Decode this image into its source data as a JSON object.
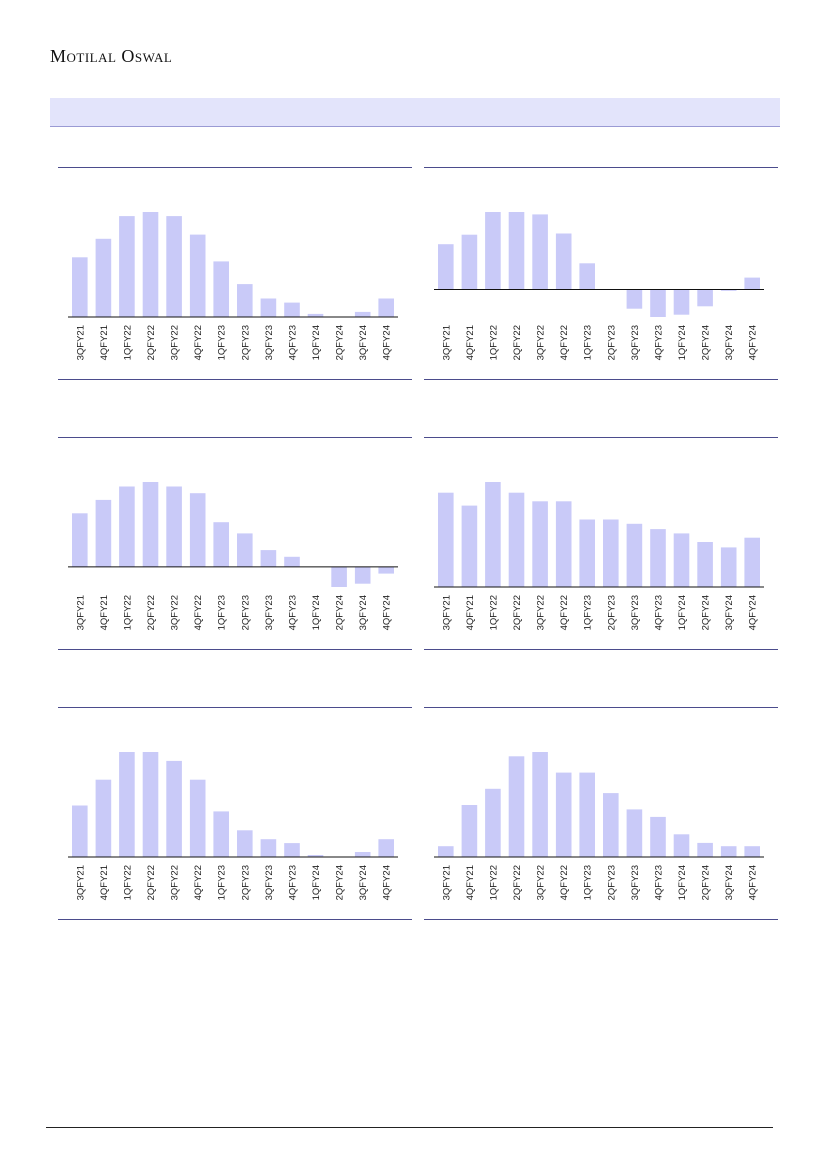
{
  "header": {
    "brand": "Motilal Oswal"
  },
  "colors": {
    "bar": "#c9caf8",
    "rule": "#4b4c8c",
    "axis": "#111111",
    "band": "#e3e4fb"
  },
  "chart_data": [
    {
      "type": "bar",
      "categories": [
        "3QFY21",
        "4QFY21",
        "1QFY22",
        "2QFY22",
        "3QFY22",
        "4QFY22",
        "1QFY23",
        "2QFY23",
        "3QFY23",
        "4QFY23",
        "1QFY24",
        "2QFY24",
        "3QFY24",
        "4QFY24"
      ],
      "values": [
        58,
        76,
        98,
        102,
        98,
        80,
        54,
        32,
        18,
        14,
        3,
        0,
        5,
        18
      ],
      "ylim": [
        0,
        102
      ]
    },
    {
      "type": "bar",
      "categories": [
        "3QFY21",
        "4QFY21",
        "1QFY22",
        "2QFY22",
        "3QFY22",
        "4QFY22",
        "1QFY23",
        "2QFY23",
        "3QFY23",
        "4QFY23",
        "1QFY24",
        "2QFY24",
        "3QFY24",
        "4QFY24"
      ],
      "values": [
        38,
        46,
        65,
        65,
        63,
        47,
        22,
        0,
        -16,
        -23,
        -21,
        -14,
        -1,
        10
      ],
      "ylim": [
        -23,
        65
      ]
    },
    {
      "type": "bar",
      "categories": [
        "3QFY21",
        "4QFY21",
        "1QFY22",
        "2QFY22",
        "3QFY22",
        "4QFY22",
        "1QFY23",
        "2QFY23",
        "3QFY23",
        "4QFY23",
        "1QFY24",
        "2QFY24",
        "3QFY24",
        "4QFY24"
      ],
      "values": [
        48,
        60,
        72,
        76,
        72,
        66,
        40,
        30,
        15,
        9,
        0,
        -18,
        -15,
        -6
      ],
      "ylim": [
        -18,
        76
      ]
    },
    {
      "type": "bar",
      "categories": [
        "3QFY21",
        "4QFY21",
        "1QFY22",
        "2QFY22",
        "3QFY22",
        "4QFY22",
        "1QFY23",
        "2QFY23",
        "3QFY23",
        "4QFY23",
        "1QFY24",
        "2QFY24",
        "3QFY24",
        "4QFY24"
      ],
      "values": [
        88,
        76,
        98,
        88,
        80,
        80,
        63,
        63,
        59,
        54,
        50,
        42,
        37,
        46
      ],
      "ylim": [
        0,
        98
      ]
    },
    {
      "type": "bar",
      "categories": [
        "3QFY21",
        "4QFY21",
        "1QFY22",
        "2QFY22",
        "3QFY22",
        "4QFY22",
        "1QFY23",
        "2QFY23",
        "3QFY23",
        "4QFY23",
        "1QFY24",
        "2QFY24",
        "3QFY24",
        "4QFY24"
      ],
      "values": [
        52,
        78,
        106,
        106,
        97,
        78,
        46,
        27,
        18,
        14,
        2,
        0,
        5,
        18
      ],
      "ylim": [
        0,
        106
      ]
    },
    {
      "type": "bar",
      "categories": [
        "3QFY21",
        "4QFY21",
        "1QFY22",
        "2QFY22",
        "3QFY22",
        "4QFY22",
        "1QFY23",
        "2QFY23",
        "3QFY23",
        "4QFY23",
        "1QFY24",
        "2QFY24",
        "3QFY24",
        "4QFY24"
      ],
      "values": [
        10,
        48,
        63,
        93,
        97,
        78,
        78,
        59,
        44,
        37,
        21,
        13,
        10,
        10
      ],
      "ylim": [
        0,
        97
      ]
    }
  ]
}
